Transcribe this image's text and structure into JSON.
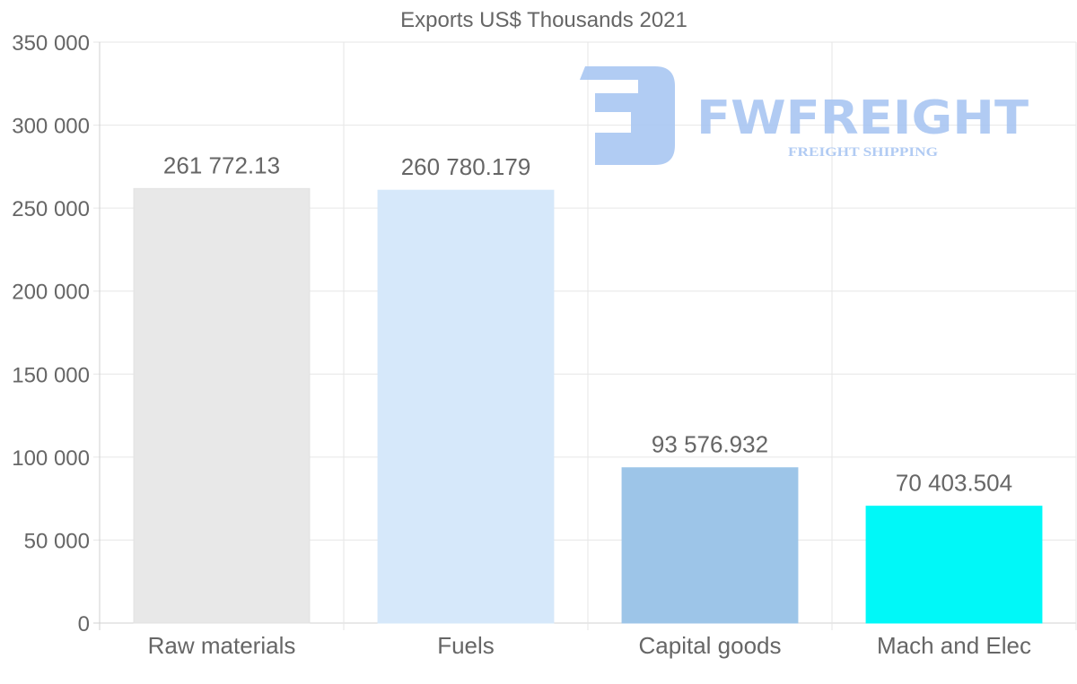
{
  "chart_data": {
    "type": "bar",
    "title": "Exports US$ Thousands 2021",
    "categories": [
      "Raw materials",
      "Fuels",
      "Capital goods",
      "Mach and Elec"
    ],
    "values": [
      261772.13,
      260780.179,
      93576.932,
      70403.504
    ],
    "value_labels": [
      "261 772.13",
      "260 780.179",
      "93 576.932",
      "70 403.504"
    ],
    "colors": [
      "#e8e8e8",
      "#d6e8fa",
      "#9dc5e8",
      "#00f8f8"
    ],
    "ylim": [
      0,
      350000
    ],
    "yticks": [
      0,
      50000,
      100000,
      150000,
      200000,
      250000,
      300000,
      350000
    ],
    "ytick_labels": [
      "0",
      "50 000",
      "100 000",
      "150 000",
      "200 000",
      "250 000",
      "300 000",
      "350 000"
    ],
    "xlabel": "",
    "ylabel": "",
    "grid": true,
    "legend": "none"
  },
  "watermark": {
    "brand": "FWFREIGHT",
    "tagline": "FREIGHT SHIPPING",
    "color": "#a9c6f2"
  }
}
